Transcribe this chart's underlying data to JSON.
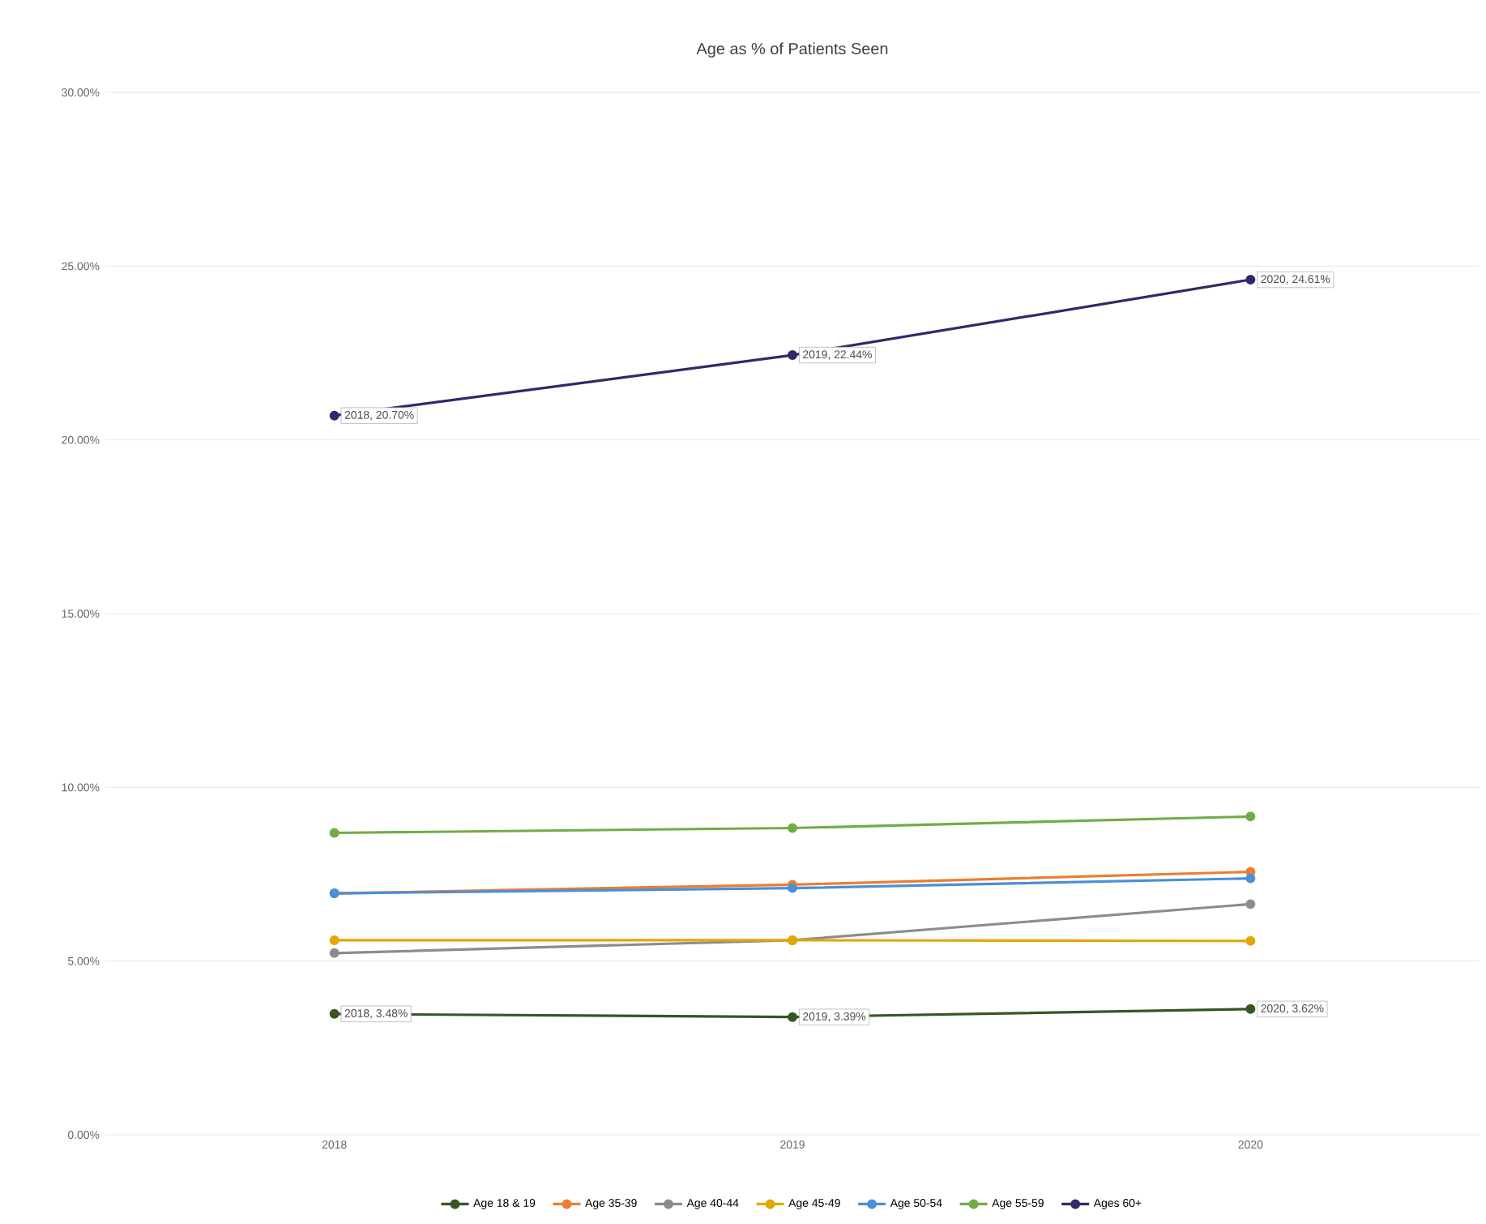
{
  "chart_data": {
    "type": "line",
    "title": "Age as % of Patients Seen",
    "categories": [
      "2018",
      "2019",
      "2020"
    ],
    "series": [
      {
        "name": "Age 18 & 19",
        "color": "#375623",
        "values": [
          3.48,
          3.39,
          3.62
        ],
        "value_labels": [
          "2018, 3.48%",
          "2019, 3.39%",
          "2020, 3.62%"
        ]
      },
      {
        "name": "Age 35-39",
        "color": "#ed7d31",
        "values": [
          6.95,
          7.2,
          7.57
        ]
      },
      {
        "name": "Age 40-44",
        "color": "#8c8c8c",
        "values": [
          5.23,
          5.6,
          6.64
        ]
      },
      {
        "name": "Age 45-49",
        "color": "#e0a800",
        "values": [
          5.6,
          5.6,
          5.58
        ]
      },
      {
        "name": "Age 50-54",
        "color": "#4a8fd9",
        "values": [
          6.95,
          7.1,
          7.38
        ]
      },
      {
        "name": "Age 55-59",
        "color": "#70ad47",
        "values": [
          8.69,
          8.83,
          9.16
        ]
      },
      {
        "name": "Ages 60+",
        "color": "#2e2a6b",
        "values": [
          20.7,
          22.44,
          24.61
        ],
        "value_labels": [
          "2018, 20.70%",
          "2019, 22.44%",
          "2020, 24.61%"
        ]
      }
    ],
    "ylim": [
      0,
      30
    ],
    "yticks": [
      {
        "value": 0,
        "label": "0.00%"
      },
      {
        "value": 5,
        "label": "5.00%"
      },
      {
        "value": 10,
        "label": "10.00%"
      },
      {
        "value": 15,
        "label": "15.00%"
      },
      {
        "value": 20,
        "label": "20.00%"
      },
      {
        "value": 25,
        "label": "25.00%"
      },
      {
        "value": 30,
        "label": "30.00%"
      }
    ],
    "grid": "y",
    "legend": "bottom",
    "marker": "circle",
    "line_style": "solid"
  }
}
